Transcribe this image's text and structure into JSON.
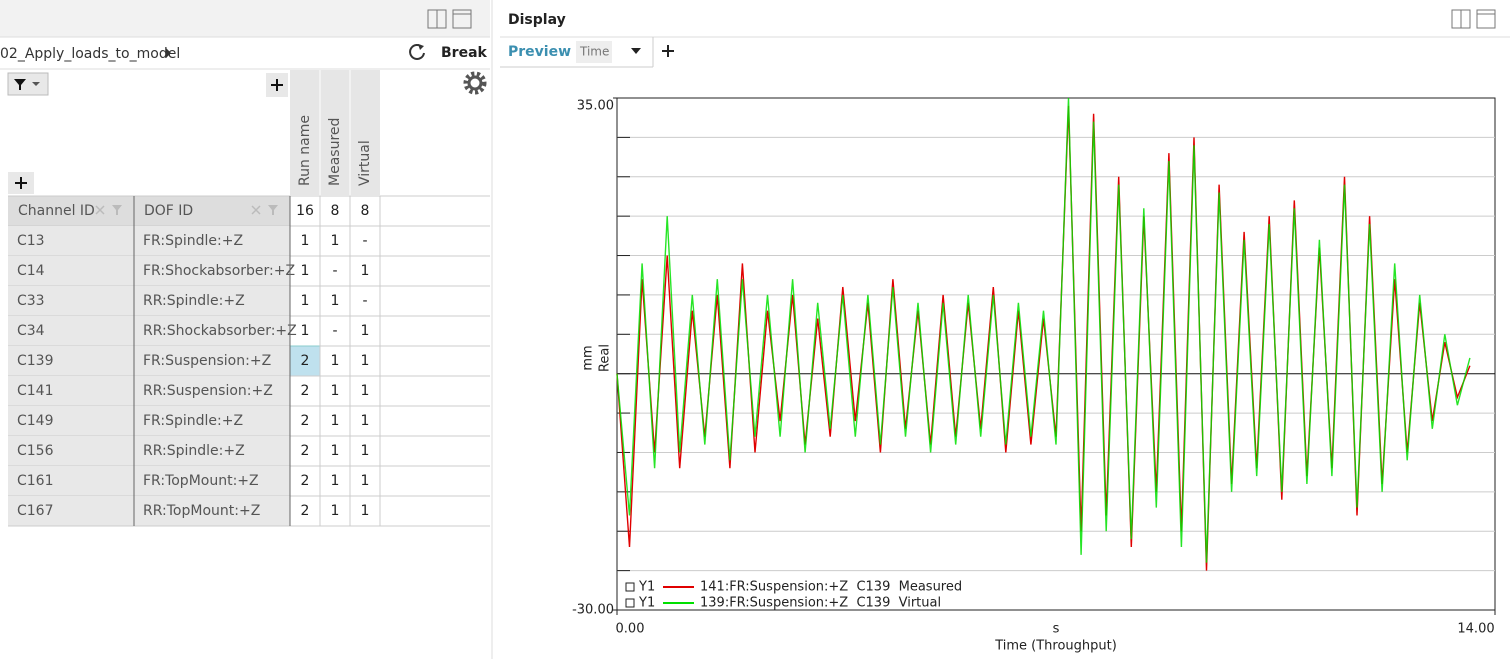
{
  "left_panel": {
    "breadcrumb": "02_Apply_loads_to_model",
    "action": "Break",
    "table": {
      "columns": [
        "Channel ID",
        "DOF ID",
        "Run name",
        "Measured",
        "Virtual"
      ],
      "totals": [
        16,
        8,
        8
      ],
      "rows": [
        [
          "C13",
          "FR:Spindle:+Z",
          1,
          1,
          "-"
        ],
        [
          "C14",
          "FR:Shockabsorber:+Z",
          1,
          "-",
          1
        ],
        [
          "C33",
          "RR:Spindle:+Z",
          1,
          1,
          "-"
        ],
        [
          "C34",
          "RR:Shockabsorber:+Z",
          1,
          "-",
          1
        ],
        [
          "C139",
          "FR:Suspension:+Z",
          2,
          1,
          1
        ],
        [
          "C141",
          "RR:Suspension:+Z",
          2,
          1,
          1
        ],
        [
          "C149",
          "FR:Spindle:+Z",
          2,
          1,
          1
        ],
        [
          "C156",
          "RR:Spindle:+Z",
          2,
          1,
          1
        ],
        [
          "C161",
          "FR:TopMount:+Z",
          2,
          1,
          1
        ],
        [
          "C167",
          "RR:TopMount:+Z",
          2,
          1,
          1
        ]
      ],
      "selected": {
        "row": 4,
        "column": 2
      }
    }
  },
  "right_panel": {
    "title": "Display",
    "tabs": [
      "Preview",
      "Time"
    ]
  },
  "chart_data": {
    "type": "line",
    "xlabel": "Time (Throughput)",
    "x_unit": "s",
    "ylabel": "Real",
    "y_unit": "mm",
    "xlim": [
      0,
      14
    ],
    "ylim": [
      -30,
      35
    ],
    "xticks": [
      {
        "value": 0,
        "label": "0.00"
      },
      {
        "value": 14,
        "label": "14.00"
      }
    ],
    "yticks": [
      {
        "value": -30,
        "label": "-30.00"
      },
      {
        "value": 35,
        "label": "35.00"
      }
    ],
    "ygrid": [
      -25,
      -20,
      -15,
      -10,
      -5,
      0,
      5,
      10,
      15,
      20,
      25,
      30
    ],
    "legend_prefix": "Y1",
    "x": [
      0,
      0.2,
      0.4,
      0.6,
      0.8,
      1,
      1.2,
      1.4,
      1.6,
      1.8,
      2,
      2.2,
      2.4,
      2.6,
      2.8,
      3,
      3.2,
      3.4,
      3.6,
      3.8,
      4,
      4.2,
      4.4,
      4.6,
      4.8,
      5,
      5.2,
      5.4,
      5.6,
      5.8,
      6,
      6.2,
      6.4,
      6.6,
      6.8,
      7,
      7.2,
      7.4,
      7.6,
      7.8,
      8,
      8.2,
      8.4,
      8.6,
      8.8,
      9,
      9.2,
      9.4,
      9.6,
      9.8,
      10,
      10.2,
      10.4,
      10.6,
      10.8,
      11,
      11.2,
      11.4,
      11.6,
      11.8,
      12,
      12.2,
      12.4,
      12.6,
      12.8,
      13,
      13.2,
      13.4,
      13.6
    ],
    "series": [
      {
        "name": "141:FR:Suspension:+Z  C139  Measured",
        "color": "#e00000",
        "values": [
          0,
          -22,
          12,
          -10,
          15,
          -12,
          8,
          -8,
          10,
          -12,
          14,
          -10,
          8,
          -6,
          10,
          -9,
          7,
          -8,
          11,
          -6,
          9,
          -10,
          12,
          -7,
          8,
          -9,
          10,
          -8,
          9,
          -7,
          11,
          -10,
          8,
          -9,
          7,
          -8,
          34,
          -20,
          33,
          -18,
          25,
          -22,
          20,
          -15,
          28,
          -20,
          30,
          -25,
          24,
          -14,
          18,
          -12,
          20,
          -16,
          22,
          -13,
          16,
          -12,
          25,
          -18,
          20,
          -14,
          12,
          -10,
          9,
          -6,
          4,
          -3,
          1
        ]
      },
      {
        "name": "139:FR:Suspension:+Z  C139  Virtual",
        "color": "#00e000",
        "values": [
          0,
          -18,
          14,
          -12,
          20,
          -10,
          10,
          -9,
          12,
          -11,
          12,
          -8,
          10,
          -8,
          12,
          -10,
          9,
          -7,
          10,
          -8,
          10,
          -9,
          11,
          -8,
          9,
          -10,
          9,
          -9,
          10,
          -8,
          10,
          -9,
          9,
          -8,
          8,
          -9,
          35,
          -23,
          32,
          -20,
          24,
          -21,
          21,
          -17,
          27,
          -22,
          29,
          -24,
          23,
          -15,
          17,
          -13,
          19,
          -15,
          21,
          -14,
          17,
          -13,
          24,
          -17,
          19,
          -15,
          14,
          -11,
          10,
          -7,
          5,
          -4,
          2
        ]
      }
    ]
  }
}
